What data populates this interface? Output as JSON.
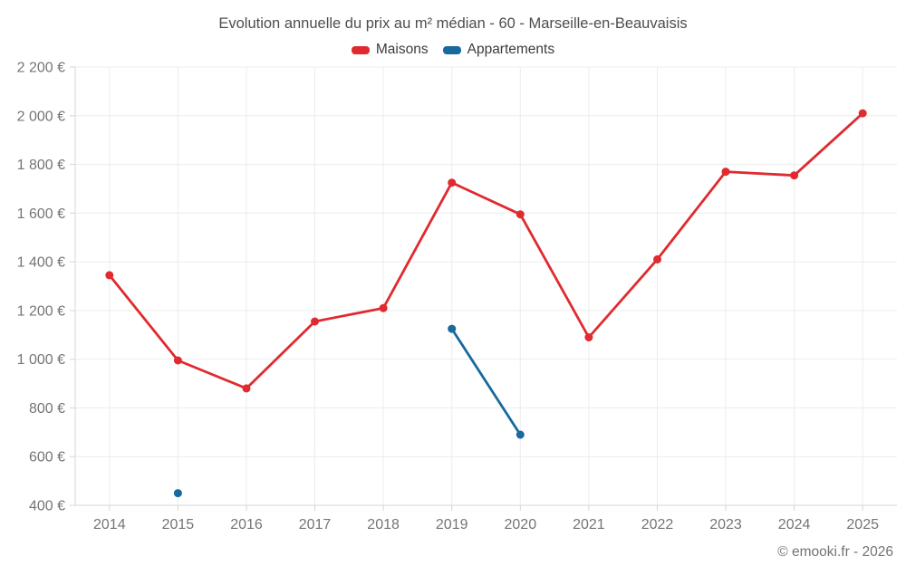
{
  "title": "Evolution annuelle du prix au m² médian - 60 - Marseille-en-Beauvaisis",
  "footer": "© emooki.fr - 2026",
  "legend": [
    {
      "label": "Maisons",
      "color": "#e02a2f"
    },
    {
      "label": "Appartements",
      "color": "#17699e"
    }
  ],
  "colors": {
    "grid": "#ececec",
    "axis": "#d6d6d6",
    "tick_label": "#757575",
    "maisons": "#e02a2f",
    "appartements": "#17699e"
  },
  "chart_data": {
    "type": "line",
    "title": "Evolution annuelle du prix au m² médian - 60 - Marseille-en-Beauvaisis",
    "categories": [
      "2014",
      "2015",
      "2016",
      "2017",
      "2018",
      "2019",
      "2020",
      "2021",
      "2022",
      "2023",
      "2024",
      "2025"
    ],
    "series": [
      {
        "name": "Maisons",
        "color": "#e02a2f",
        "values": [
          1345,
          995,
          880,
          1155,
          1210,
          1725,
          1595,
          1090,
          1410,
          1770,
          1755,
          2010
        ]
      },
      {
        "name": "Appartements",
        "color": "#17699e",
        "values": [
          null,
          450,
          null,
          null,
          null,
          1125,
          690,
          null,
          null,
          null,
          null,
          null
        ]
      }
    ],
    "ylim": [
      400,
      2200
    ],
    "ytick_values": [
      400,
      600,
      800,
      1000,
      1200,
      1400,
      1600,
      1800,
      2000,
      2200
    ],
    "ytick_labels": [
      "400 €",
      "600 €",
      "800 €",
      "1 000 €",
      "1 200 €",
      "1 400 €",
      "1 600 €",
      "1 800 €",
      "2 000 €",
      "2 200 €"
    ],
    "xlabel": "",
    "ylabel": "",
    "grid": true,
    "legend_position": "top"
  }
}
